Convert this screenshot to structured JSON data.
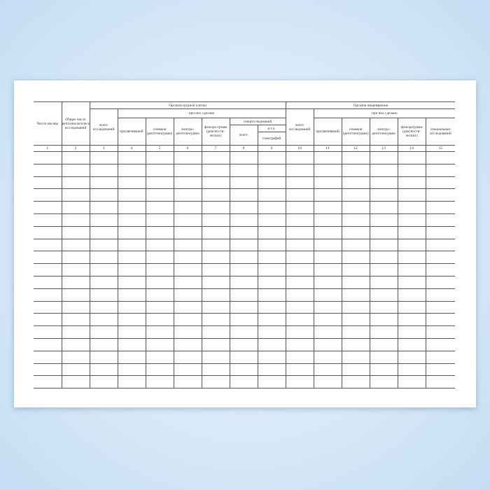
{
  "form": {
    "headers": {
      "day": "Число месяца",
      "total": "Общее число рентгенологических исследований",
      "chest": "Органов грудной клетки",
      "digestive": "Органов пищеварения",
      "total_studies": "всего исследований",
      "done": "при них сделано",
      "fluoroscopy": "просвечиваний",
      "images": "снимков (рентгенограмм)",
      "electro": "электро-рентгенограмм",
      "fluoro_chest": "флюоро-грамм (диагности-ческих)",
      "fluoro_dig": "флюорограмм (диагности-ческих)",
      "special": "специсследований",
      "special_total": "всего",
      "incl": "в т.ч.",
      "tomography": "томографий",
      "special_studies": "специальных исследований"
    },
    "column_numbers": [
      "1",
      "2",
      "3",
      "4",
      "5",
      "6",
      "7",
      "8",
      "9",
      "10",
      "11",
      "12",
      "13",
      "14",
      "15"
    ],
    "blank_rows": 19
  }
}
